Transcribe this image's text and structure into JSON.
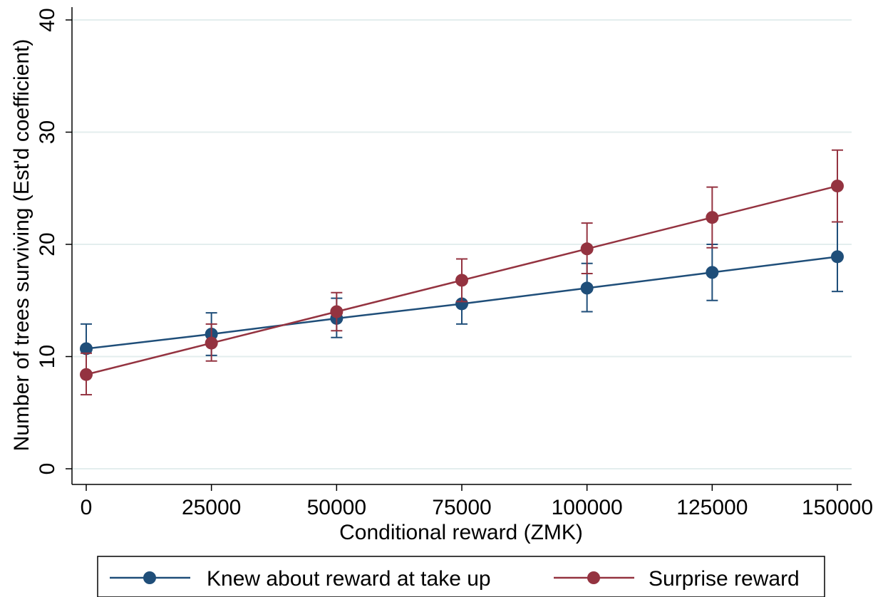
{
  "chart_data": {
    "type": "line",
    "xlabel": "Conditional reward (ZMK)",
    "ylabel": "Number of trees surviving (Est'd coefficient)",
    "x": [
      0,
      25000,
      50000,
      75000,
      100000,
      125000,
      150000
    ],
    "x_ticks": [
      "0",
      "25000",
      "50000",
      "75000",
      "100000",
      "125000",
      "150000"
    ],
    "y_ticks": [
      "0",
      "10",
      "20",
      "30",
      "40"
    ],
    "xlim": [
      0,
      150000
    ],
    "ylim": [
      0,
      40
    ],
    "grid": true,
    "legend_position": "bottom",
    "series": [
      {
        "name": "Knew about reward at take up",
        "color": "#1f4e79",
        "values": [
          10.7,
          12.0,
          13.4,
          14.7,
          16.1,
          17.5,
          18.9
        ],
        "ci_low": [
          8.5,
          10.1,
          11.7,
          12.9,
          14.0,
          15.0,
          15.8
        ],
        "ci_high": [
          12.9,
          13.9,
          15.2,
          16.6,
          18.3,
          20.0,
          22.0
        ]
      },
      {
        "name": "Surprise reward",
        "color": "#943340",
        "values": [
          8.4,
          11.2,
          14.0,
          16.8,
          19.6,
          22.4,
          25.2
        ],
        "ci_low": [
          6.6,
          9.6,
          12.3,
          14.9,
          17.4,
          19.7,
          22.0
        ],
        "ci_high": [
          10.3,
          12.9,
          15.7,
          18.7,
          21.9,
          25.1,
          28.4
        ]
      }
    ]
  }
}
